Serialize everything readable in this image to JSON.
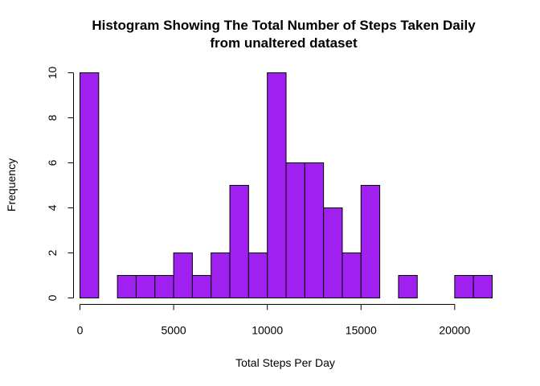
{
  "chart_data": {
    "type": "bar",
    "title_line1": "Histogram Showing The Total Number of Steps Taken Daily",
    "title_line2": "from unaltered dataset",
    "xlabel": "Total Steps Per Day",
    "ylabel": "Frequency",
    "bin_width": 1000,
    "bin_starts": [
      0,
      1000,
      2000,
      3000,
      4000,
      5000,
      6000,
      7000,
      8000,
      9000,
      10000,
      11000,
      12000,
      13000,
      14000,
      15000,
      16000,
      17000,
      18000,
      19000,
      20000,
      21000
    ],
    "values": [
      10,
      0,
      1,
      1,
      1,
      2,
      1,
      2,
      5,
      2,
      10,
      6,
      6,
      4,
      2,
      5,
      0,
      1,
      0,
      0,
      1,
      1
    ],
    "xlim": [
      0,
      22000
    ],
    "ylim": [
      0,
      10
    ],
    "x_ticks": [
      0,
      5000,
      10000,
      15000,
      20000
    ],
    "y_ticks": [
      0,
      2,
      4,
      6,
      8,
      10
    ],
    "bar_color": "#A020F0",
    "bar_border": "#000000",
    "grid": false
  }
}
